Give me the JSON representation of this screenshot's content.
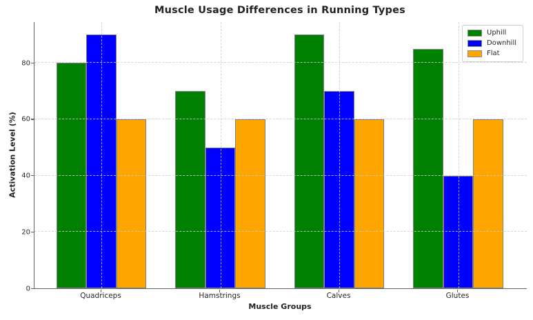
{
  "chart_data": {
    "type": "bar",
    "title": "Muscle Usage Differences in Running Types",
    "xlabel": "Muscle Groups",
    "ylabel": "Activation Level (%)",
    "categories": [
      "Quadriceps",
      "Hamstrings",
      "Calves",
      "Glutes"
    ],
    "series": [
      {
        "name": "Uphill",
        "color": "#008000",
        "values": [
          80,
          70,
          90,
          85
        ]
      },
      {
        "name": "Downhill",
        "color": "#0000ff",
        "values": [
          90,
          50,
          70,
          40
        ]
      },
      {
        "name": "Flat",
        "color": "#ffa500",
        "values": [
          60,
          60,
          60,
          60
        ]
      }
    ],
    "ylim": [
      0,
      94.5
    ],
    "yticks": [
      0,
      20,
      40,
      60,
      80
    ],
    "grid": "dashed-both-axes",
    "legend_position": "upper-right",
    "bar_edge_color": "#808080",
    "grid_color": "#d3d3d3",
    "axis_color": "#606060",
    "text_color": "#262626"
  }
}
